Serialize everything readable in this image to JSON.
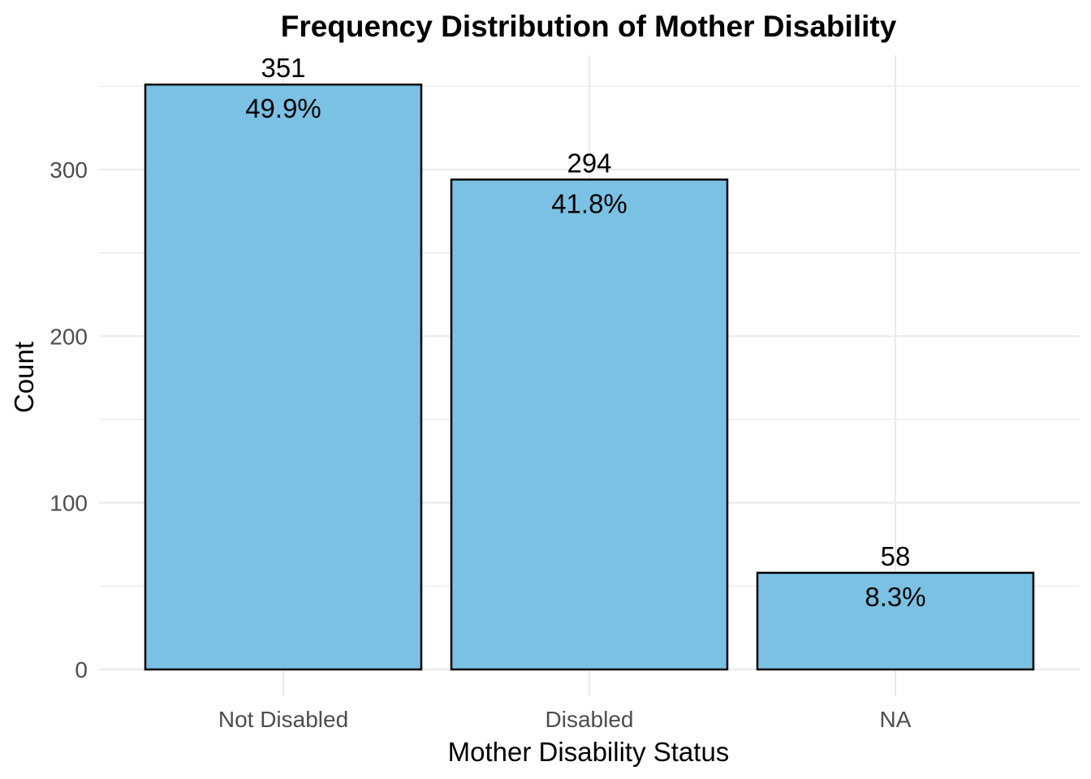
{
  "chart_data": {
    "type": "bar",
    "title": "Frequency Distribution of Mother Disability",
    "xlabel": "Mother Disability Status",
    "ylabel": "Count",
    "categories": [
      "Not Disabled",
      "Disabled",
      "NA"
    ],
    "values": [
      351,
      294,
      58
    ],
    "value_labels": [
      "351",
      "294",
      "58"
    ],
    "percent_labels": [
      "49.9%",
      "41.8%",
      "8.3%"
    ],
    "ylim": [
      0,
      370
    ],
    "y_ticks": [
      0,
      100,
      200,
      300
    ],
    "y_tick_labels": [
      "0",
      "100",
      "200",
      "300"
    ],
    "grid": true,
    "legend": "none",
    "colors": {
      "bar_fill": "#7AC1E4",
      "bar_border": "#000000",
      "grid": "#EBEBEB",
      "tick_text": "#4D4D4D",
      "text": "#000000"
    }
  }
}
